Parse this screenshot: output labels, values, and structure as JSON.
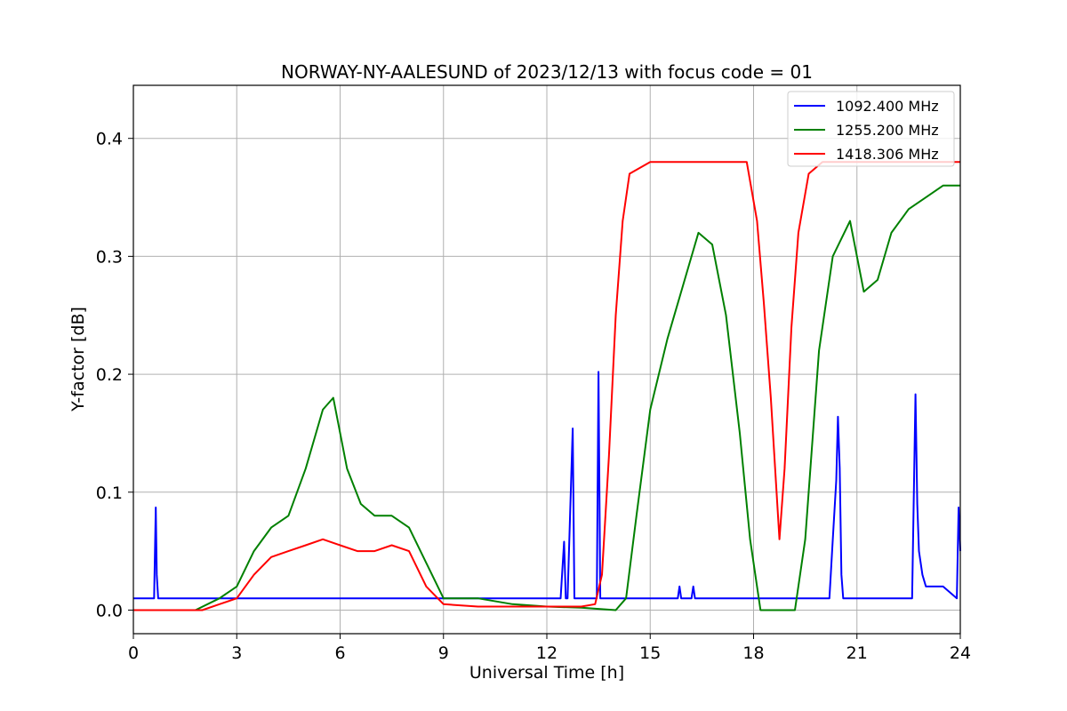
{
  "chart_data": {
    "type": "line",
    "title": "NORWAY-NY-AALESUND of 2023/12/13 with focus code = 01",
    "xlabel": "Universal Time [h]",
    "ylabel": "Y-factor [dB]",
    "xlim": [
      0,
      24
    ],
    "ylim": [
      -0.02,
      0.445
    ],
    "xticks": [
      0,
      3,
      6,
      9,
      12,
      15,
      18,
      21,
      24
    ],
    "xtick_labels": [
      "0",
      "3",
      "6",
      "9",
      "12",
      "15",
      "18",
      "21",
      "24"
    ],
    "yticks": [
      0.0,
      0.1,
      0.2,
      0.3,
      0.4
    ],
    "ytick_labels": [
      "0.0",
      "0.1",
      "0.2",
      "0.3",
      "0.4"
    ],
    "grid": true,
    "legend_position": "top-right",
    "series": [
      {
        "name": "1092.400 MHz",
        "color": "#0000ff",
        "x": [
          0,
          0.6,
          0.65,
          0.68,
          0.72,
          0.8,
          12.4,
          12.5,
          12.55,
          12.6,
          12.75,
          12.8,
          12.85,
          13.45,
          13.5,
          13.55,
          13.6,
          15.8,
          15.85,
          15.9,
          16.2,
          16.25,
          16.3,
          20.2,
          20.3,
          20.4,
          20.45,
          20.5,
          20.55,
          20.6,
          20.7,
          22.6,
          22.7,
          22.75,
          22.8,
          22.9,
          23.0,
          23.5,
          23.9,
          23.95,
          24.0
        ],
        "y": [
          0.01,
          0.01,
          0.087,
          0.03,
          0.01,
          0.01,
          0.01,
          0.058,
          0.01,
          0.01,
          0.154,
          0.01,
          0.01,
          0.01,
          0.202,
          0.01,
          0.01,
          0.01,
          0.02,
          0.01,
          0.01,
          0.02,
          0.01,
          0.01,
          0.06,
          0.11,
          0.164,
          0.12,
          0.03,
          0.01,
          0.01,
          0.01,
          0.183,
          0.09,
          0.05,
          0.03,
          0.02,
          0.02,
          0.01,
          0.087,
          0.05
        ]
      },
      {
        "name": "1255.200 MHz",
        "color": "#008000",
        "x": [
          0,
          1.8,
          2.5,
          3.0,
          3.5,
          4.0,
          4.5,
          5.0,
          5.5,
          5.8,
          6.2,
          6.6,
          7.0,
          7.5,
          8.0,
          8.5,
          9.0,
          10.0,
          11.0,
          12.0,
          13.0,
          14.0,
          14.3,
          14.6,
          15.0,
          15.5,
          16.0,
          16.4,
          16.8,
          17.2,
          17.6,
          17.9,
          18.2,
          18.5,
          18.8,
          19.2,
          19.5,
          19.9,
          20.3,
          20.8,
          21.2,
          21.6,
          22.0,
          22.5,
          23.0,
          23.5,
          24.0
        ],
        "y": [
          0.0,
          0.0,
          0.01,
          0.02,
          0.05,
          0.07,
          0.08,
          0.12,
          0.17,
          0.18,
          0.12,
          0.09,
          0.08,
          0.08,
          0.07,
          0.04,
          0.01,
          0.01,
          0.005,
          0.003,
          0.002,
          0.0,
          0.01,
          0.08,
          0.17,
          0.23,
          0.28,
          0.32,
          0.31,
          0.25,
          0.15,
          0.06,
          0.0,
          0.0,
          0.0,
          0.0,
          0.06,
          0.22,
          0.3,
          0.33,
          0.27,
          0.28,
          0.32,
          0.34,
          0.35,
          0.36,
          0.36
        ]
      },
      {
        "name": "1418.306 MHz",
        "color": "#ff0000",
        "x": [
          0,
          2.0,
          2.5,
          3.0,
          3.5,
          4.0,
          4.5,
          5.0,
          5.5,
          6.0,
          6.5,
          7.0,
          7.5,
          8.0,
          8.5,
          9.0,
          10.0,
          11.0,
          12.0,
          13.0,
          13.4,
          13.6,
          13.8,
          14.0,
          14.2,
          14.4,
          15.0,
          16.0,
          17.0,
          17.8,
          18.1,
          18.3,
          18.5,
          18.75,
          18.9,
          19.1,
          19.3,
          19.6,
          20.0,
          21.0,
          22.0,
          23.0,
          24.0
        ],
        "y": [
          0.0,
          0.0,
          0.005,
          0.01,
          0.03,
          0.045,
          0.05,
          0.055,
          0.06,
          0.055,
          0.05,
          0.05,
          0.055,
          0.05,
          0.02,
          0.005,
          0.003,
          0.003,
          0.003,
          0.003,
          0.005,
          0.03,
          0.13,
          0.25,
          0.33,
          0.37,
          0.38,
          0.38,
          0.38,
          0.38,
          0.33,
          0.26,
          0.18,
          0.06,
          0.12,
          0.24,
          0.32,
          0.37,
          0.38,
          0.38,
          0.38,
          0.38,
          0.38
        ]
      }
    ]
  }
}
